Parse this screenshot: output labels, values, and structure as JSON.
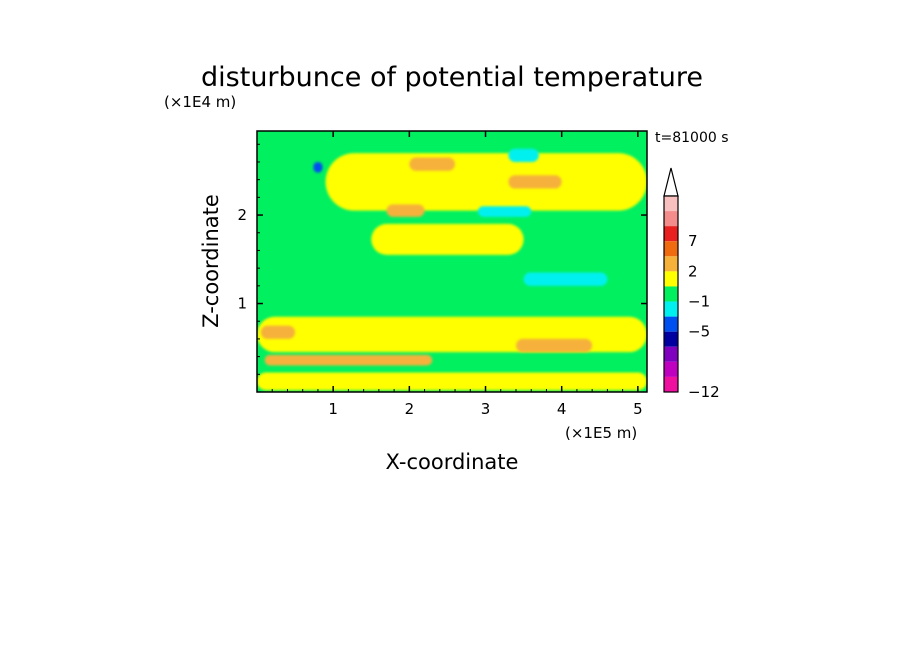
{
  "chart_data": {
    "type": "heatmap",
    "title": "disturbunce of potential temperature",
    "time_label": "t=81000 s",
    "xlabel": "X-coordinate",
    "x_scale_label": "(×1E5 m)",
    "ylabel": "Z-coordinate",
    "y_scale_label": "(×1E4 m)",
    "xlim": [
      0,
      5.12
    ],
    "ylim": [
      0,
      2.95
    ],
    "x_ticks": [
      1,
      2,
      3,
      4,
      5
    ],
    "x_tick_labels": [
      "1",
      "2",
      "3",
      "4",
      "5"
    ],
    "y_ticks": [
      1,
      2
    ],
    "y_tick_labels": [
      "1",
      "2"
    ],
    "colorbar": {
      "labels": [
        "7",
        "2",
        "-1",
        "-5",
        "-12"
      ],
      "colors_top_to_bottom": [
        "#f9c0c0",
        "#f48c8c",
        "#e82020",
        "#f06a10",
        "#f5b13a",
        "#ffff00",
        "#00f060",
        "#00f0f0",
        "#0050f0",
        "#0000a0",
        "#8000c0",
        "#c000c0",
        "#f010a0"
      ],
      "extend_top": true
    },
    "background_color": "#00f060",
    "regions": [
      {
        "level": "0 to 1",
        "color": "#ffff00",
        "x": [
          0.9,
          5.12
        ],
        "z": [
          2.05,
          2.7
        ]
      },
      {
        "level": "0 to 1",
        "color": "#ffff00",
        "x": [
          0,
          5.12
        ],
        "z": [
          0.45,
          0.85
        ]
      },
      {
        "level": "0 to 1",
        "color": "#ffff00",
        "x": [
          0,
          5.12
        ],
        "z": [
          0.02,
          0.22
        ]
      },
      {
        "level": "0 to 1",
        "color": "#ffff00",
        "x": [
          1.5,
          3.5
        ],
        "z": [
          1.55,
          1.9
        ]
      },
      {
        "level": "1 to 2",
        "color": "#f5b13a",
        "x": [
          2.0,
          2.6
        ],
        "z": [
          2.5,
          2.65
        ]
      },
      {
        "level": "1 to 2",
        "color": "#f5b13a",
        "x": [
          1.7,
          2.2
        ],
        "z": [
          1.98,
          2.12
        ]
      },
      {
        "level": "1 to 2",
        "color": "#f5b13a",
        "x": [
          3.3,
          4.0
        ],
        "z": [
          2.3,
          2.45
        ]
      },
      {
        "level": "1 to 2",
        "color": "#f5b13a",
        "x": [
          0.1,
          2.3
        ],
        "z": [
          0.3,
          0.42
        ]
      },
      {
        "level": "1 to 2",
        "color": "#f5b13a",
        "x": [
          0.05,
          0.5
        ],
        "z": [
          0.6,
          0.75
        ]
      },
      {
        "level": "1 to 2",
        "color": "#f5b13a",
        "x": [
          3.4,
          4.4
        ],
        "z": [
          0.45,
          0.6
        ]
      },
      {
        "level": "-1 to 0",
        "color": "#00f0f0",
        "x": [
          3.3,
          3.7
        ],
        "z": [
          2.6,
          2.75
        ]
      },
      {
        "level": "-1 to 0",
        "color": "#00f0f0",
        "x": [
          2.9,
          3.6
        ],
        "z": [
          1.98,
          2.1
        ]
      },
      {
        "level": "-1 to 0",
        "color": "#00f0f0",
        "x": [
          3.5,
          4.6
        ],
        "z": [
          1.2,
          1.35
        ]
      },
      {
        "level": "-2 to -1",
        "color": "#0050f0",
        "x": [
          0.74,
          0.86
        ],
        "z": [
          2.48,
          2.6
        ]
      }
    ]
  }
}
